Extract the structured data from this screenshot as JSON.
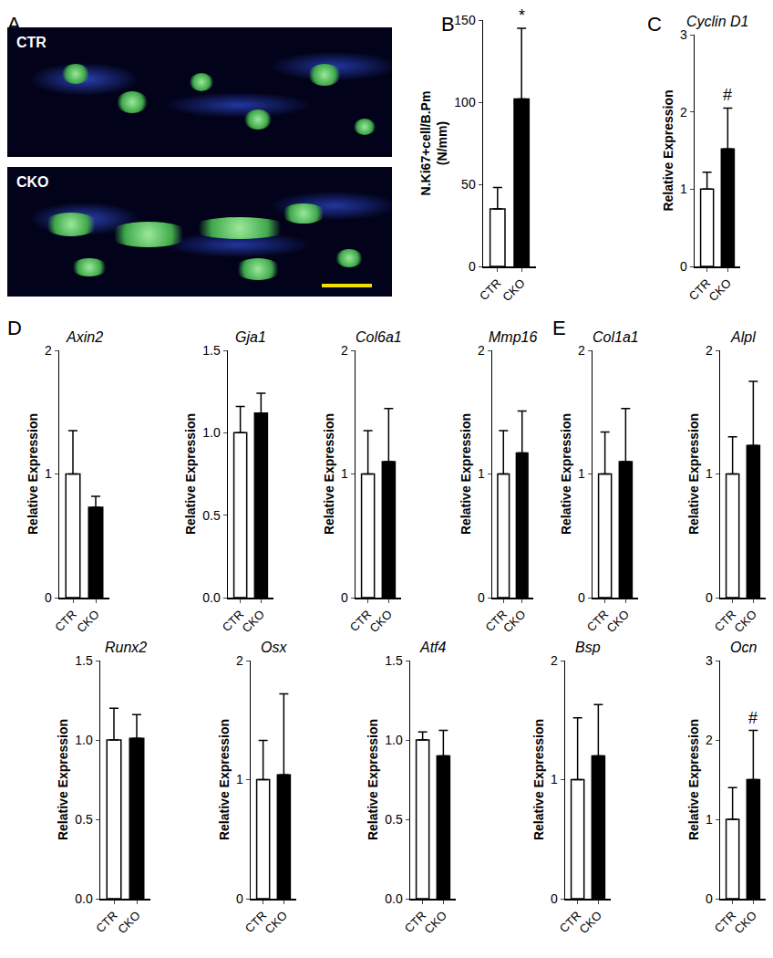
{
  "panel_labels": [
    "A",
    "B",
    "C",
    "D",
    "E"
  ],
  "micrograph_labels": [
    "CTR",
    "CKO"
  ],
  "chart_data": [
    {
      "type": "bar",
      "y_label": [
        "N.Ki67+cell/B.Pm",
        "(N/mm)"
      ],
      "categories": [
        "CTR",
        "CKO"
      ],
      "values": [
        35,
        102
      ],
      "errors": [
        13,
        43
      ],
      "colors": [
        "#ffffff",
        "#000000"
      ],
      "ylim": [
        0,
        150
      ],
      "yticks": [
        0,
        50,
        100,
        150
      ],
      "annotations": [
        {
          "category": "CKO",
          "text": "*"
        }
      ]
    },
    {
      "type": "bar",
      "title": "Cyclin D1",
      "y_label": "Relative Expression",
      "categories": [
        "CTR",
        "CKO"
      ],
      "values": [
        1.0,
        1.52
      ],
      "errors": [
        0.22,
        0.53
      ],
      "colors": [
        "#ffffff",
        "#000000"
      ],
      "ylim": [
        0,
        3
      ],
      "yticks": [
        0,
        1,
        2,
        3
      ],
      "annotations": [
        {
          "category": "CKO",
          "text": "#"
        }
      ]
    },
    {
      "type": "bar",
      "title": "Axin2",
      "y_label": "Relative Expression",
      "categories": [
        "CTR",
        "CKO"
      ],
      "values": [
        1.0,
        0.73
      ],
      "errors": [
        0.35,
        0.09
      ],
      "colors": [
        "#ffffff",
        "#000000"
      ],
      "ylim": [
        0,
        2
      ],
      "yticks": [
        0,
        1,
        2
      ]
    },
    {
      "type": "bar",
      "title": "Gja1",
      "y_label": "Relative Expression",
      "categories": [
        "CTR",
        "CKO"
      ],
      "values": [
        1.0,
        1.12
      ],
      "errors": [
        0.16,
        0.12
      ],
      "colors": [
        "#ffffff",
        "#000000"
      ],
      "ylim": [
        0,
        1.5
      ],
      "yticks": [
        {
          "value": 0,
          "label": "0.0"
        },
        {
          "value": 0.5,
          "label": "0.5"
        },
        {
          "value": 1,
          "label": "1.0"
        },
        {
          "value": 1.5,
          "label": "1.5"
        }
      ]
    },
    {
      "type": "bar",
      "title": "Col6a1",
      "y_label": "Relative Expression",
      "categories": [
        "CTR",
        "CKO"
      ],
      "values": [
        1.0,
        1.1
      ],
      "errors": [
        0.35,
        0.43
      ],
      "colors": [
        "#ffffff",
        "#000000"
      ],
      "ylim": [
        0,
        2
      ],
      "yticks": [
        0,
        1,
        2
      ]
    },
    {
      "type": "bar",
      "title": "Mmp16",
      "y_label": "Relative Expression",
      "categories": [
        "CTR",
        "CKO"
      ],
      "values": [
        1.0,
        1.17
      ],
      "errors": [
        0.35,
        0.34
      ],
      "colors": [
        "#ffffff",
        "#000000"
      ],
      "ylim": [
        0,
        2
      ],
      "yticks": [
        0,
        1,
        2
      ]
    },
    {
      "type": "bar",
      "title": "Col1a1",
      "y_label": "Relative Expression",
      "categories": [
        "CTR",
        "CKO"
      ],
      "values": [
        1.0,
        1.1
      ],
      "errors": [
        0.34,
        0.43
      ],
      "colors": [
        "#ffffff",
        "#000000"
      ],
      "ylim": [
        0,
        2
      ],
      "yticks": [
        0,
        1,
        2
      ]
    },
    {
      "type": "bar",
      "title": "Alpl",
      "y_label": "Relative Expression",
      "categories": [
        "CTR",
        "CKO"
      ],
      "values": [
        1.0,
        1.23
      ],
      "errors": [
        0.3,
        0.52
      ],
      "colors": [
        "#ffffff",
        "#000000"
      ],
      "ylim": [
        0,
        2
      ],
      "yticks": [
        0,
        1,
        2
      ]
    },
    {
      "type": "bar",
      "title": "Runx2",
      "y_label": "Relative Expression",
      "categories": [
        "CTR",
        "CKO"
      ],
      "values": [
        1.0,
        1.01
      ],
      "errors": [
        0.2,
        0.15
      ],
      "colors": [
        "#ffffff",
        "#000000"
      ],
      "ylim": [
        0,
        1.5
      ],
      "yticks": [
        {
          "value": 0,
          "label": "0.0"
        },
        {
          "value": 0.5,
          "label": "0.5"
        },
        {
          "value": 1,
          "label": "1.0"
        },
        {
          "value": 1.5,
          "label": "1.5"
        }
      ]
    },
    {
      "type": "bar",
      "title": "Osx",
      "y_label": "Relative Expression",
      "categories": [
        "CTR",
        "CKO"
      ],
      "values": [
        1.0,
        1.04
      ],
      "errors": [
        0.33,
        0.68
      ],
      "colors": [
        "#ffffff",
        "#000000"
      ],
      "ylim": [
        0,
        2
      ],
      "yticks": [
        0,
        1,
        2
      ]
    },
    {
      "type": "bar",
      "title": "Atf4",
      "y_label": "Relative Expression",
      "categories": [
        "CTR",
        "CKO"
      ],
      "values": [
        1.0,
        0.9
      ],
      "errors": [
        0.05,
        0.16
      ],
      "colors": [
        "#ffffff",
        "#000000"
      ],
      "ylim": [
        0,
        1.5
      ],
      "yticks": [
        {
          "value": 0,
          "label": "0.0"
        },
        {
          "value": 0.5,
          "label": "0.5"
        },
        {
          "value": 1,
          "label": "1.0"
        },
        {
          "value": 1.5,
          "label": "1.5"
        }
      ]
    },
    {
      "type": "bar",
      "title": "Bsp",
      "y_label": "Relative Expression",
      "categories": [
        "CTR",
        "CKO"
      ],
      "values": [
        1.0,
        1.2
      ],
      "errors": [
        0.52,
        0.43
      ],
      "colors": [
        "#ffffff",
        "#000000"
      ],
      "ylim": [
        0,
        2
      ],
      "yticks": [
        0,
        1,
        2
      ]
    },
    {
      "type": "bar",
      "title": "Ocn",
      "y_label": "Relative Expression",
      "categories": [
        "CTR",
        "CKO"
      ],
      "values": [
        1.0,
        1.5
      ],
      "errors": [
        0.4,
        0.62
      ],
      "colors": [
        "#ffffff",
        "#000000"
      ],
      "ylim": [
        0,
        3
      ],
      "yticks": [
        0,
        1,
        2,
        3
      ],
      "annotations": [
        {
          "category": "CKO",
          "text": "#"
        }
      ]
    }
  ]
}
